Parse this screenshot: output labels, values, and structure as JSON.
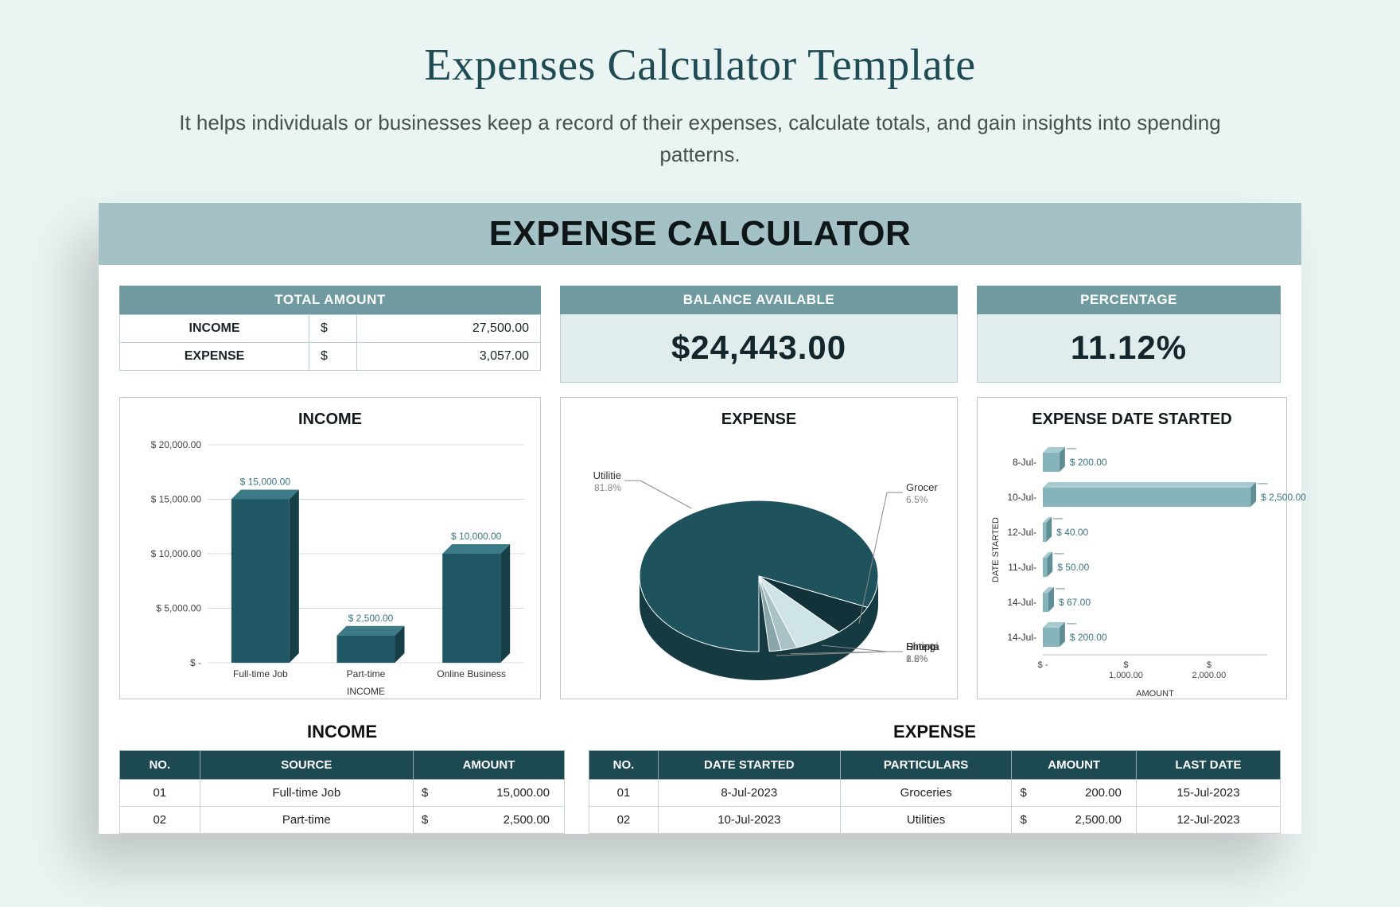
{
  "page": {
    "title": "Expenses Calculator Template",
    "subtitle": "It helps individuals or businesses keep a record of their expenses, calculate totals, and gain insights into spending patterns."
  },
  "sheet": {
    "banner": "EXPENSE CALCULATOR",
    "totals": {
      "header": "TOTAL AMOUNT",
      "rows": [
        {
          "label": "INCOME",
          "currency": "$",
          "value": "27,500.00"
        },
        {
          "label": "EXPENSE",
          "currency": "$",
          "value": "3,057.00"
        }
      ]
    },
    "balance": {
      "header": "BALANCE AVAILABLE",
      "value": "$24,443.00"
    },
    "percentage": {
      "header": "PERCENTAGE",
      "value": "11.12%"
    },
    "income_chart": {
      "title": "INCOME",
      "xlabel": "INCOME",
      "categories": [
        "Full-time Job",
        "Part-time",
        "Online Business"
      ],
      "values": [
        15000,
        2500,
        10000
      ],
      "value_labels": [
        "$ 15,000.00",
        "$ 2,500.00",
        "$ 10,000.00"
      ],
      "bar_face": "#1f5864",
      "bar_top": "#3b7a86",
      "bar_side": "#163e47",
      "yticks": [
        "$ -",
        "$ 5,000.00",
        "$ 10,000.00",
        "$ 15,000.00",
        "$ 20,000.00"
      ],
      "ymax": 20000,
      "grid_color": "#d4dcdd"
    },
    "expense_pie": {
      "title": "EXPENSE",
      "slices": [
        {
          "name": "Utilitie",
          "pct": 81.8,
          "color": "#1e525d"
        },
        {
          "name": "Grocer",
          "pct": 6.5,
          "color": "#12323a"
        },
        {
          "name": "Shoppi",
          "pct": 6.5,
          "color": "#cfe4e6"
        },
        {
          "name": "Dining",
          "pct": 2.2,
          "color": "#a9c2c5"
        },
        {
          "name": "Enterta",
          "pct": 1.6,
          "color": "#88a5a9"
        }
      ],
      "side_color": "#153a42"
    },
    "date_chart": {
      "title": "EXPENSE DATE STARTED",
      "ylabel": "DATE STARTED",
      "xlabel": "AMOUNT",
      "categories": [
        "8-Jul-",
        "10-Jul-",
        "12-Jul-",
        "11-Jul-",
        "14-Jul-",
        "14-Jul-"
      ],
      "values": [
        200,
        2500,
        40,
        50,
        67,
        200
      ],
      "value_labels": [
        "$ 200.00",
        "$ 2,500.00",
        "$ 40.00",
        "$ 50.00",
        "$ 67.00",
        "$ 200.00"
      ],
      "bar_face": "#86b4bb",
      "bar_top": "#a6cad0",
      "bar_side": "#5f8e95",
      "xmax": 2700,
      "xticks": [
        "$ -",
        "$\n1,000.00",
        "$\n2,000.00"
      ]
    },
    "income_table": {
      "title": "INCOME",
      "columns": [
        "NO.",
        "SOURCE",
        "AMOUNT"
      ],
      "rows": [
        {
          "no": "01",
          "source": "Full-time Job",
          "amount": "15,000.00"
        },
        {
          "no": "02",
          "source": "Part-time",
          "amount": "2,500.00"
        }
      ]
    },
    "expense_table": {
      "title": "EXPENSE",
      "columns": [
        "NO.",
        "DATE STARTED",
        "PARTICULARS",
        "AMOUNT",
        "LAST DATE"
      ],
      "rows": [
        {
          "no": "01",
          "date": "8-Jul-2023",
          "part": "Groceries",
          "amount": "200.00",
          "last": "15-Jul-2023"
        },
        {
          "no": "02",
          "date": "10-Jul-2023",
          "part": "Utilities",
          "amount": "2,500.00",
          "last": "12-Jul-2023"
        }
      ]
    },
    "colors": {
      "band": "#6f9ba0",
      "banner_bg": "#a4c2c5",
      "th_bg": "#1d4953",
      "light": "#e1eced"
    }
  }
}
